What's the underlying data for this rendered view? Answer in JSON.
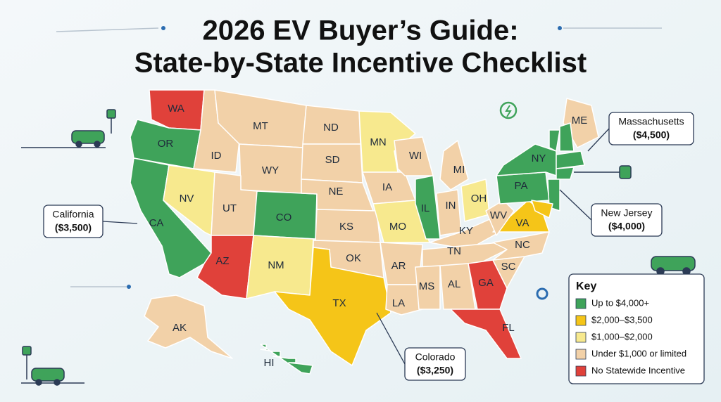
{
  "title": [
    "2026 EV Buyer’s Guide:",
    "State-by-State Incentive Checklist"
  ],
  "states": [
    {
      "label": "WA",
      "color": "#e0413a"
    },
    {
      "label": "OR",
      "color": "#3fa35a"
    },
    {
      "label": "CA",
      "color": "#3fa35a"
    },
    {
      "label": "NV",
      "color": "#f7e98e"
    },
    {
      "label": "ID",
      "color": "#f2d1a8"
    },
    {
      "label": "MT",
      "color": "#f2d1a8"
    },
    {
      "label": "WY",
      "color": "#f2d1a8"
    },
    {
      "label": "UT",
      "color": "#f2d1a8"
    },
    {
      "label": "CO",
      "color": "#3fa35a"
    },
    {
      "label": "AZ",
      "color": "#e0413a"
    },
    {
      "label": "NM",
      "color": "#f7e98e"
    },
    {
      "label": "ND",
      "color": "#f2d1a8"
    },
    {
      "label": "SD",
      "color": "#f2d1a8"
    },
    {
      "label": "NE",
      "color": "#f2d1a8"
    },
    {
      "label": "KS",
      "color": "#f2d1a8"
    },
    {
      "label": "OK",
      "color": "#f2d1a8"
    },
    {
      "label": "TX",
      "color": "#f5c518"
    },
    {
      "label": "MN",
      "color": "#f7e98e"
    },
    {
      "label": "IA",
      "color": "#f2d1a8"
    },
    {
      "label": "MO",
      "color": "#f7e98e"
    },
    {
      "label": "AR",
      "color": "#f2d1a8"
    },
    {
      "label": "LA",
      "color": "#f2d1a8"
    },
    {
      "label": "WI",
      "color": "#f2d1a8"
    },
    {
      "label": "IL",
      "color": "#3fa35a"
    },
    {
      "label": "MI",
      "color": "#f2d1a8"
    },
    {
      "label": "IN",
      "color": "#f2d1a8"
    },
    {
      "label": "OH",
      "color": "#f7e98e"
    },
    {
      "label": "KY",
      "color": "#f2d1a8"
    },
    {
      "label": "TN",
      "color": "#f2d1a8"
    },
    {
      "label": "MS",
      "color": "#f2d1a8"
    },
    {
      "label": "AL",
      "color": "#f2d1a8"
    },
    {
      "label": "GA",
      "color": "#e0413a"
    },
    {
      "label": "FL",
      "color": "#e0413a"
    },
    {
      "label": "SC",
      "color": "#f2d1a8"
    },
    {
      "label": "NC",
      "color": "#f2d1a8"
    },
    {
      "label": "VA",
      "color": "#f5c518"
    },
    {
      "label": "WV",
      "color": "#f2d1a8"
    },
    {
      "label": "PA",
      "color": "#3fa35a"
    },
    {
      "label": "NY",
      "color": "#3fa35a"
    },
    {
      "label": "ME",
      "color": "#f2d1a8"
    },
    {
      "label": "AK",
      "color": "#f2d1a8"
    },
    {
      "label": "HI",
      "color": "#3fa35a"
    },
    {
      "label": null,
      "color": "#3fa35a"
    },
    {
      "label": null,
      "color": "#3fa35a"
    },
    {
      "label": null,
      "color": "#3fa35a"
    },
    {
      "label": null,
      "color": "#3fa35a"
    },
    {
      "label": null,
      "color": "#3fa35a"
    },
    {
      "label": null,
      "color": "#f5c518"
    }
  ],
  "callouts": [
    {
      "state": "Massachusetts",
      "amount": "($4,500)"
    },
    {
      "state": "California",
      "amount": "($3,500)"
    },
    {
      "state": "New Jersey",
      "amount": "($4,000)"
    },
    {
      "state": "Colorado",
      "amount": "($3,250)"
    }
  ],
  "key": {
    "title": "Key",
    "items": [
      {
        "label": "Up to $4,000+",
        "color": "#3fa35a"
      },
      {
        "label": "$2,000–$3,500",
        "color": "#f5c518"
      },
      {
        "label": "$1,000–$2,000",
        "color": "#f7e98e"
      },
      {
        "label": "Under $1,000 or limited",
        "color": "#f2d1a8"
      },
      {
        "label": "No Statewide Incentive",
        "color": "#e0413a"
      }
    ]
  }
}
